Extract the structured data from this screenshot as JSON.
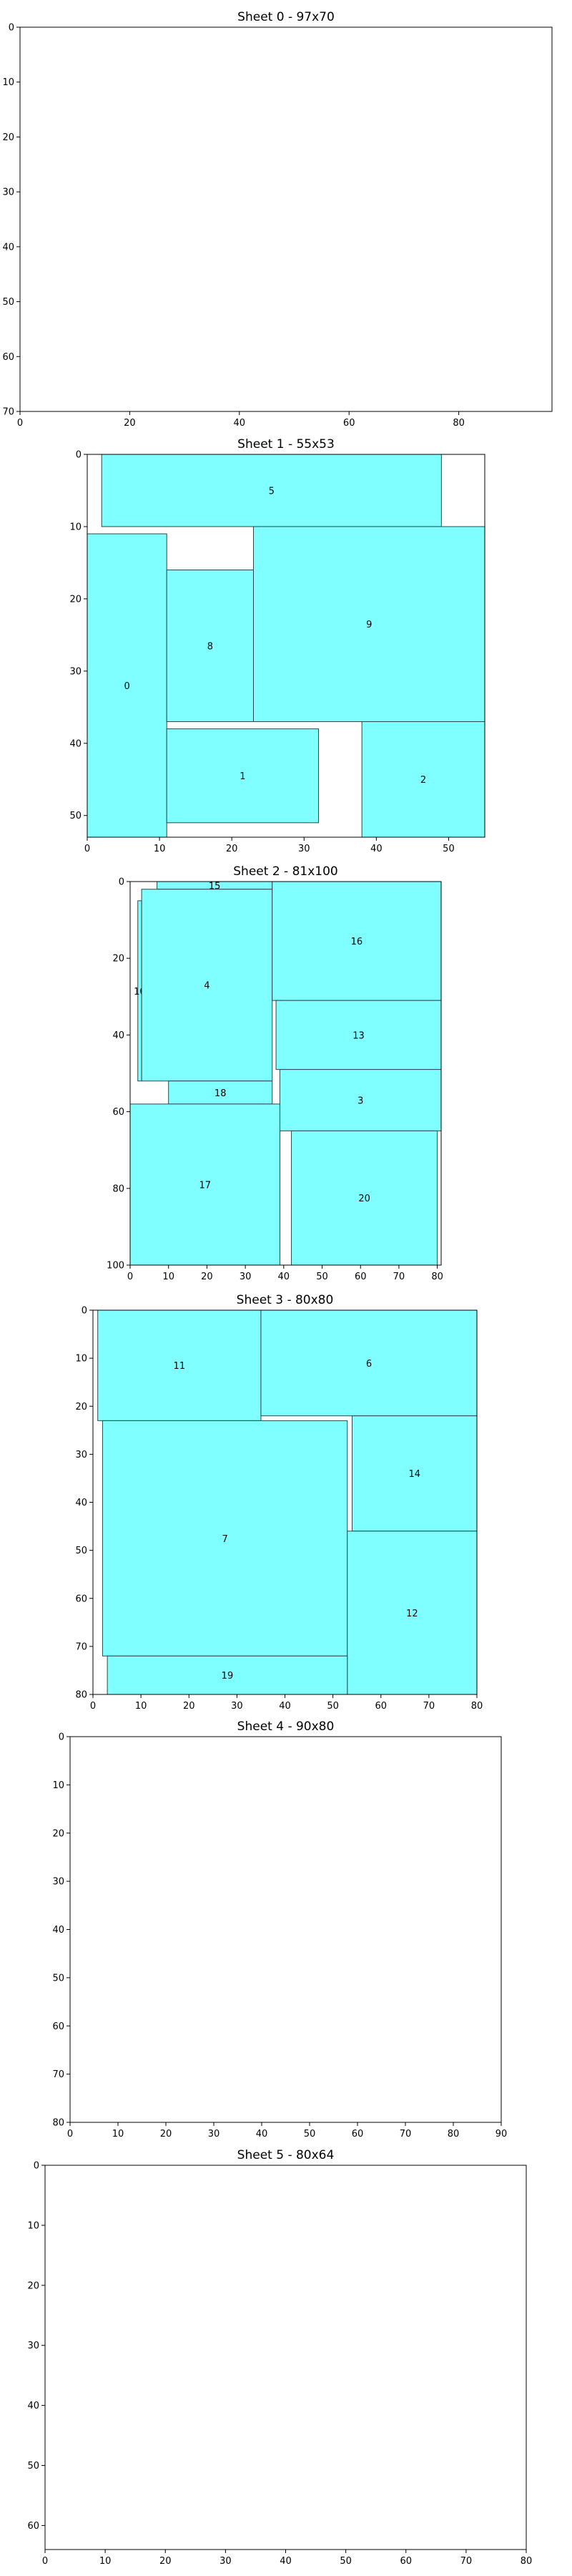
{
  "colors": {
    "piece_fill": "#7fffff",
    "piece_stroke": "#2a4a4a",
    "axis": "#000000"
  },
  "chart_data": [
    {
      "type": "sheet-layout",
      "title": "Sheet 0 - 97x70",
      "xlim": [
        0,
        97
      ],
      "ylim": [
        0,
        70
      ],
      "y_inverted": true,
      "xticks": [
        0,
        20,
        40,
        60,
        80
      ],
      "yticks": [
        0,
        10,
        20,
        30,
        40,
        50,
        60,
        70
      ],
      "pieces": []
    },
    {
      "type": "sheet-layout",
      "title": "Sheet 1 - 55x53",
      "xlim": [
        0,
        55
      ],
      "ylim": [
        0,
        53
      ],
      "y_inverted": true,
      "xticks": [
        0,
        10,
        20,
        30,
        40,
        50
      ],
      "yticks": [
        0,
        10,
        20,
        30,
        40,
        50
      ],
      "pieces": [
        {
          "label": "5",
          "x": 2,
          "y": 0,
          "w": 47,
          "h": 10
        },
        {
          "label": "0",
          "x": 0,
          "y": 11,
          "w": 11,
          "h": 42
        },
        {
          "label": "8",
          "x": 11,
          "y": 16,
          "w": 12,
          "h": 21
        },
        {
          "label": "9",
          "x": 23,
          "y": 10,
          "w": 32,
          "h": 27
        },
        {
          "label": "1",
          "x": 11,
          "y": 38,
          "w": 21,
          "h": 13
        },
        {
          "label": "2",
          "x": 38,
          "y": 37,
          "w": 17,
          "h": 16
        }
      ]
    },
    {
      "type": "sheet-layout",
      "title": "Sheet 2 - 81x100",
      "xlim": [
        0,
        81
      ],
      "ylim": [
        0,
        100
      ],
      "y_inverted": true,
      "xticks": [
        0,
        10,
        20,
        30,
        40,
        50,
        60,
        70,
        80
      ],
      "yticks": [
        0,
        20,
        40,
        60,
        80,
        100
      ],
      "pieces": [
        {
          "label": "15",
          "x": 7,
          "y": 0,
          "w": 30,
          "h": 2
        },
        {
          "label": "10",
          "x": 2,
          "y": 5,
          "w": 1,
          "h": 47
        },
        {
          "label": "4",
          "x": 3,
          "y": 2,
          "w": 34,
          "h": 50
        },
        {
          "label": "16",
          "x": 37,
          "y": 0,
          "w": 44,
          "h": 31
        },
        {
          "label": "13",
          "x": 38,
          "y": 31,
          "w": 43,
          "h": 18
        },
        {
          "label": "3",
          "x": 39,
          "y": 49,
          "w": 42,
          "h": 16
        },
        {
          "label": "18",
          "x": 10,
          "y": 52,
          "w": 27,
          "h": 6
        },
        {
          "label": "17",
          "x": 0,
          "y": 58,
          "w": 39,
          "h": 42
        },
        {
          "label": "20",
          "x": 42,
          "y": 65,
          "w": 38,
          "h": 35
        }
      ]
    },
    {
      "type": "sheet-layout",
      "title": "Sheet 3 - 80x80",
      "xlim": [
        0,
        80
      ],
      "ylim": [
        0,
        80
      ],
      "y_inverted": true,
      "xticks": [
        0,
        10,
        20,
        30,
        40,
        50,
        60,
        70,
        80
      ],
      "yticks": [
        0,
        10,
        20,
        30,
        40,
        50,
        60,
        70,
        80
      ],
      "pieces": [
        {
          "label": "11",
          "x": 1,
          "y": 0,
          "w": 34,
          "h": 23
        },
        {
          "label": "6",
          "x": 35,
          "y": 0,
          "w": 45,
          "h": 22
        },
        {
          "label": "7",
          "x": 2,
          "y": 23,
          "w": 51,
          "h": 49
        },
        {
          "label": "14",
          "x": 54,
          "y": 22,
          "w": 26,
          "h": 24
        },
        {
          "label": "12",
          "x": 53,
          "y": 46,
          "w": 27,
          "h": 34
        },
        {
          "label": "19",
          "x": 3,
          "y": 72,
          "w": 50,
          "h": 8
        }
      ]
    },
    {
      "type": "sheet-layout",
      "title": "Sheet 4 - 90x80",
      "xlim": [
        0,
        90
      ],
      "ylim": [
        0,
        80
      ],
      "y_inverted": true,
      "xticks": [
        0,
        10,
        20,
        30,
        40,
        50,
        60,
        70,
        80,
        90
      ],
      "yticks": [
        0,
        10,
        20,
        30,
        40,
        50,
        60,
        70,
        80
      ],
      "pieces": []
    },
    {
      "type": "sheet-layout",
      "title": "Sheet 5 - 80x64",
      "xlim": [
        0,
        80
      ],
      "ylim": [
        0,
        64
      ],
      "y_inverted": true,
      "xticks": [
        0,
        10,
        20,
        30,
        40,
        50,
        60,
        70,
        80
      ],
      "yticks": [
        0,
        10,
        20,
        30,
        40,
        50,
        60
      ],
      "pieces": []
    }
  ]
}
